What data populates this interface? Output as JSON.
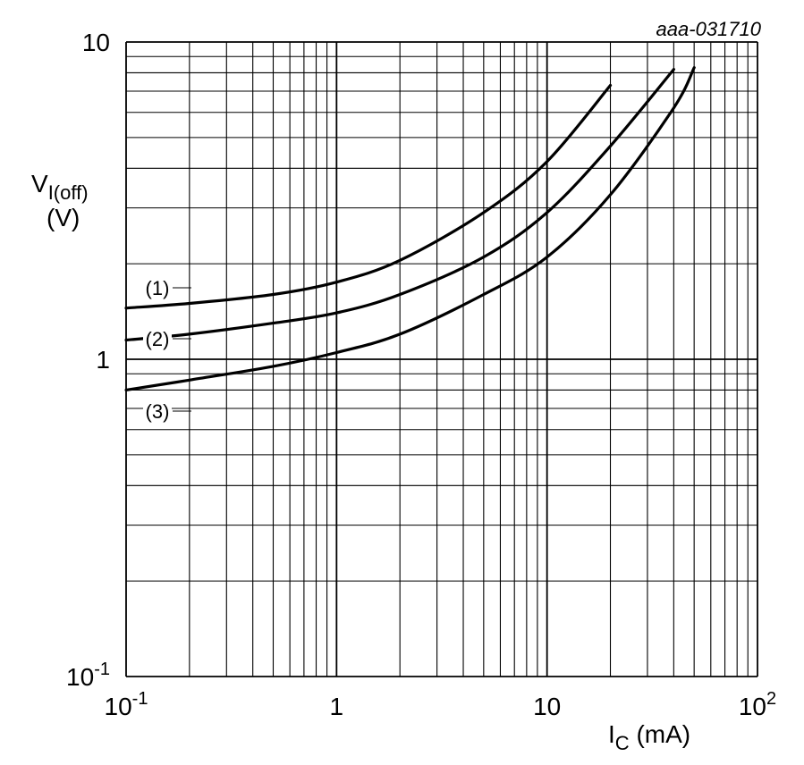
{
  "chart_data": {
    "type": "line",
    "figure_id": "aaa-031710",
    "x_scale": "log",
    "y_scale": "log",
    "xlim": [
      0.1,
      100
    ],
    "ylim": [
      0.1,
      10
    ],
    "grid": true,
    "x_ticks": [
      {
        "base": "10",
        "exp": "-1"
      },
      {
        "base": "1",
        "exp": ""
      },
      {
        "base": "10",
        "exp": ""
      },
      {
        "base": "10",
        "exp": "2"
      }
    ],
    "y_ticks": [
      {
        "base": "10",
        "exp": ""
      },
      {
        "base": "1",
        "exp": ""
      },
      {
        "base": "10",
        "exp": "-1"
      }
    ],
    "xlabel": {
      "main": "I",
      "sub": "C",
      "unit": " (mA)"
    },
    "ylabel": {
      "main": "V",
      "sub": "I(off)",
      "unit": "(V)"
    },
    "series": [
      {
        "name": "(1)",
        "x": [
          0.1,
          0.2,
          0.5,
          1,
          2,
          5,
          10,
          20
        ],
        "y": [
          1.45,
          1.5,
          1.6,
          1.75,
          2.05,
          2.9,
          4.2,
          7.3
        ]
      },
      {
        "name": "(2)",
        "x": [
          0.1,
          0.2,
          0.5,
          1,
          2,
          5,
          10,
          20,
          40
        ],
        "y": [
          1.15,
          1.2,
          1.3,
          1.4,
          1.6,
          2.1,
          2.9,
          4.7,
          8.2
        ]
      },
      {
        "name": "(3)",
        "x": [
          0.1,
          0.2,
          0.5,
          1,
          2,
          5,
          10,
          20,
          40,
          50
        ],
        "y": [
          0.8,
          0.86,
          0.95,
          1.05,
          1.2,
          1.6,
          2.1,
          3.3,
          6.2,
          8.3
        ]
      }
    ]
  }
}
